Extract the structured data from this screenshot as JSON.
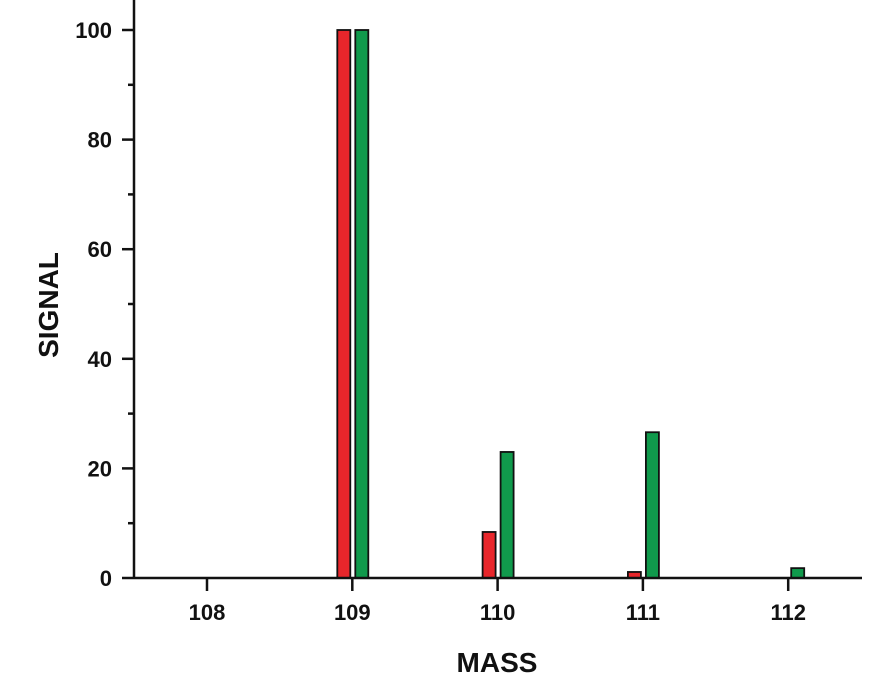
{
  "chart_data": {
    "type": "bar",
    "title": "",
    "xlabel": "MASS",
    "ylabel": "SIGNAL",
    "categories": [
      "108",
      "109",
      "110",
      "111",
      "112"
    ],
    "x": [
      108,
      109,
      110,
      111,
      112
    ],
    "series": [
      {
        "name": "red",
        "color": "#e8262b",
        "values": [
          0,
          100,
          8.4,
          1.1,
          0
        ]
      },
      {
        "name": "green",
        "color": "#109a4c",
        "values": [
          0,
          100,
          23,
          26.6,
          1.8
        ]
      }
    ],
    "ylim": [
      0,
      105
    ],
    "xlim": [
      107.5,
      112.5
    ],
    "yticks_major": [
      0,
      20,
      40,
      60,
      80,
      100
    ],
    "yticks_minor": [
      10,
      30,
      50,
      70,
      90
    ],
    "xticks": [
      108,
      109,
      110,
      111,
      112
    ],
    "grid": false,
    "legend": null
  }
}
